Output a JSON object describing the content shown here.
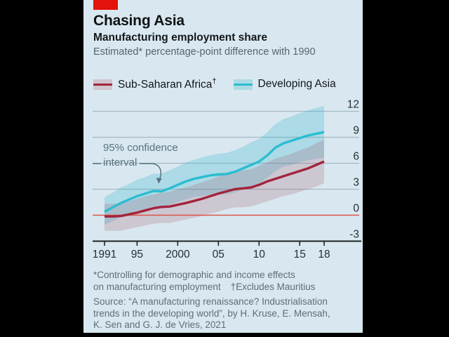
{
  "header": {
    "title": "Chasing Asia",
    "subtitle": "Manufacturing employment share",
    "unit_note": "Estimated* percentage-point difference with 1990"
  },
  "legend": {
    "africa_label": "Sub-Saharan Africa",
    "africa_dagger": "†",
    "asia_label": "Developing Asia"
  },
  "annotation": {
    "line1": "95% confidence",
    "line2": "interval"
  },
  "footnotes": {
    "line1": "*Controlling for demographic and income effects",
    "line2": "on manufacturing employment",
    "line2_note": "†Excludes Mauritius",
    "source_line1": "Source: “A manufacturing renaissance? Industrialisation",
    "source_line2": "trends in the developing world”, by H. Kruse, E. Mensah,",
    "source_line3": "K. Sen and G. J. de Vries, 2021"
  },
  "colors": {
    "brand_red": "#e3120b",
    "card_background": "#d9e8f0",
    "africa_line": "#a2243c",
    "asia_line": "#2bbdd0",
    "zero_line": "#db5449",
    "gridline": "#a4b9c4",
    "axis": "#1c2326",
    "annotation_text": "#5a7280"
  },
  "chart_data": {
    "type": "line",
    "title": "Chasing Asia",
    "subtitle": "Manufacturing employment share",
    "unit": "Estimated* percentage-point difference with 1990",
    "ylim": [
      -3,
      12
    ],
    "yticks": [
      12,
      9,
      6,
      3,
      0,
      -3
    ],
    "xtick_labels": [
      "1991",
      "95",
      "2000",
      "05",
      "10",
      "15",
      "18"
    ],
    "xtick_years": [
      1991,
      1995,
      2000,
      2005,
      2010,
      2015,
      2018
    ],
    "zero_line": true,
    "grid": true,
    "x": [
      1991,
      1992,
      1993,
      1994,
      1995,
      1996,
      1997,
      1998,
      1999,
      2000,
      2001,
      2002,
      2003,
      2004,
      2005,
      2006,
      2007,
      2008,
      2009,
      2010,
      2011,
      2012,
      2013,
      2014,
      2015,
      2016,
      2017,
      2018
    ],
    "series": [
      {
        "name": "Developing Asia",
        "color": "#2bbdd0",
        "band_color": "rgba(58,184,204,0.28)",
        "values": [
          0.4,
          0.9,
          1.4,
          1.8,
          2.2,
          2.5,
          2.8,
          2.75,
          3.1,
          3.5,
          3.9,
          4.2,
          4.4,
          4.6,
          4.7,
          4.75,
          5.0,
          5.4,
          5.8,
          6.2,
          6.9,
          7.8,
          8.3,
          8.6,
          8.9,
          9.2,
          9.4,
          9.6
        ],
        "ci_upper": [
          2.1,
          2.6,
          3.2,
          3.6,
          4.1,
          4.4,
          4.8,
          4.8,
          5.2,
          5.6,
          6.1,
          6.4,
          6.7,
          6.9,
          7.1,
          7.2,
          7.5,
          7.9,
          8.4,
          8.8,
          9.6,
          10.5,
          11.1,
          11.4,
          11.8,
          12.1,
          12.4,
          12.6
        ],
        "ci_lower": [
          -1.1,
          -0.7,
          -0.2,
          0.1,
          0.5,
          0.7,
          1.0,
          0.9,
          1.2,
          1.5,
          1.8,
          2.1,
          2.2,
          2.4,
          2.4,
          2.4,
          2.6,
          3.0,
          3.3,
          3.6,
          4.3,
          5.1,
          5.6,
          5.8,
          6.1,
          6.3,
          6.5,
          6.6
        ]
      },
      {
        "name": "Sub-Saharan Africa",
        "color": "#a2243c",
        "band_color": "rgba(158,70,88,0.20)",
        "values": [
          -0.15,
          -0.15,
          -0.1,
          0.1,
          0.3,
          0.55,
          0.8,
          0.95,
          1.0,
          1.2,
          1.4,
          1.65,
          1.9,
          2.2,
          2.5,
          2.75,
          3.0,
          3.1,
          3.2,
          3.5,
          3.9,
          4.2,
          4.5,
          4.8,
          5.1,
          5.4,
          5.8,
          6.2
        ],
        "ci_upper": [
          1.3,
          1.3,
          1.4,
          1.6,
          1.9,
          2.2,
          2.4,
          2.6,
          2.7,
          3.0,
          3.2,
          3.5,
          3.8,
          4.1,
          4.5,
          4.8,
          5.1,
          5.2,
          5.3,
          5.7,
          6.1,
          6.5,
          6.8,
          7.1,
          7.5,
          7.8,
          8.3,
          8.7
        ],
        "ci_lower": [
          -1.8,
          -1.8,
          -1.8,
          -1.6,
          -1.4,
          -1.2,
          -1.0,
          -0.9,
          -0.9,
          -0.7,
          -0.5,
          -0.3,
          -0.1,
          0.2,
          0.4,
          0.7,
          0.9,
          0.9,
          1.0,
          1.3,
          1.6,
          1.9,
          2.2,
          2.4,
          2.7,
          3.0,
          3.3,
          3.7
        ]
      }
    ],
    "annotation": "95% confidence interval"
  }
}
